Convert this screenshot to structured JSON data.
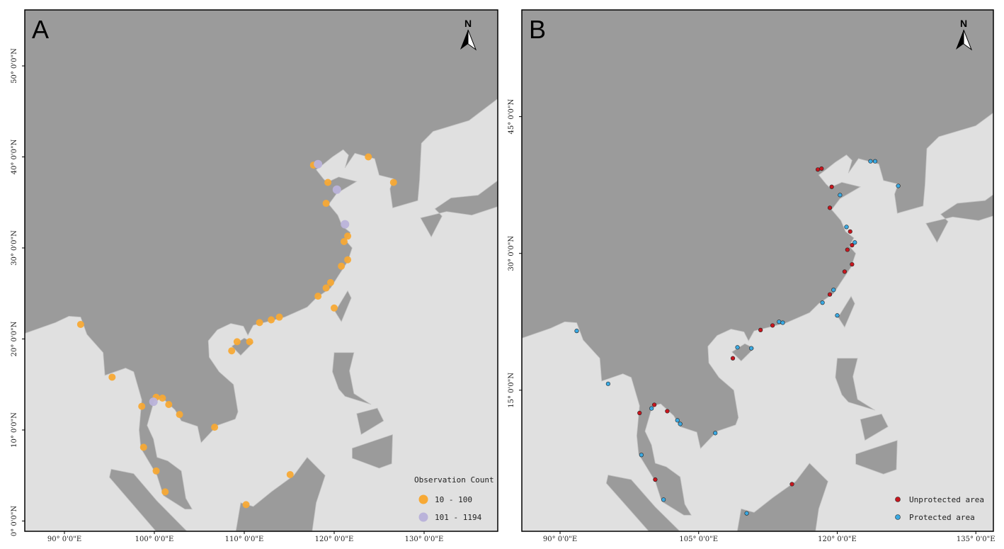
{
  "panels": [
    {
      "label": "A",
      "north": "N",
      "xlim": [
        85.59,
        138.19
      ],
      "ylim": [
        -1.13,
        56.15
      ],
      "xticks": [
        {
          "value": 90,
          "label": "90° 0'0\"E"
        },
        {
          "value": 100,
          "label": "100° 0'0\"E"
        },
        {
          "value": 110,
          "label": "110° 0'0\"E"
        },
        {
          "value": 120,
          "label": "120° 0'0\"E"
        },
        {
          "value": 130,
          "label": "130° 0'0\"E"
        }
      ],
      "yticks": [
        {
          "value": 0,
          "label": "0° 0'0\"N"
        },
        {
          "value": 10,
          "label": "10° 0'0\"N"
        },
        {
          "value": 20,
          "label": "20° 0'0\"N"
        },
        {
          "value": 30,
          "label": "30° 0'0\"N"
        },
        {
          "value": 40,
          "label": "40° 0'0\"N"
        },
        {
          "value": 50,
          "label": "50° 0'0\"N"
        }
      ],
      "legend": {
        "title": "Observation Count",
        "items": [
          {
            "label": "10 - 100",
            "color": "#f7a935",
            "points": [
              [
                117.7,
                39.1
              ],
              [
                119.3,
                37.2
              ],
              [
                119.1,
                34.9
              ],
              [
                123.8,
                40.0
              ],
              [
                126.6,
                37.2
              ],
              [
                121.5,
                31.3
              ],
              [
                121.1,
                30.7
              ],
              [
                121.5,
                28.7
              ],
              [
                120.8,
                28.0
              ],
              [
                119.6,
                26.2
              ],
              [
                119.1,
                25.6
              ],
              [
                118.2,
                24.7
              ],
              [
                120.0,
                23.4
              ],
              [
                113.9,
                22.4
              ],
              [
                113.0,
                22.1
              ],
              [
                111.7,
                21.8
              ],
              [
                110.6,
                19.7
              ],
              [
                109.2,
                19.7
              ],
              [
                108.6,
                18.7
              ],
              [
                91.8,
                21.6
              ],
              [
                95.3,
                15.8
              ],
              [
                100.2,
                13.6
              ],
              [
                100.9,
                13.5
              ],
              [
                101.6,
                12.8
              ],
              [
                102.8,
                11.7
              ],
              [
                98.6,
                12.6
              ],
              [
                106.7,
                10.3
              ],
              [
                98.8,
                8.1
              ],
              [
                100.2,
                5.5
              ],
              [
                101.2,
                3.2
              ],
              [
                115.1,
                5.1
              ],
              [
                110.2,
                1.8
              ]
            ]
          },
          {
            "label": "101 - 1194",
            "color": "#bab3da",
            "points": [
              [
                118.2,
                39.2
              ],
              [
                120.3,
                36.4
              ],
              [
                121.2,
                32.6
              ],
              [
                99.9,
                13.1
              ]
            ]
          }
        ]
      }
    },
    {
      "label": "B",
      "north": "N",
      "xlim": [
        85.86,
        136.9
      ],
      "ylim": [
        -0.47,
        56.7
      ],
      "xticks": [
        {
          "value": 90,
          "label": "90° 0'0\"E"
        },
        {
          "value": 105,
          "label": "105° 0'0\"E"
        },
        {
          "value": 120,
          "label": "120° 0'0\"E"
        },
        {
          "value": 135,
          "label": "135° 0'0\"E"
        }
      ],
      "yticks": [
        {
          "value": 15,
          "label": "15° 0'0\"N"
        },
        {
          "value": 30,
          "label": "30° 0'0\"N"
        },
        {
          "value": 45,
          "label": "45° 0'0\"N"
        }
      ],
      "legend": {
        "items": [
          {
            "label": "Unprotected area",
            "color": "#c8161e",
            "points": [
              [
                117.9,
                39.2
              ],
              [
                118.3,
                39.3
              ],
              [
                119.4,
                37.3
              ],
              [
                119.2,
                35.0
              ],
              [
                121.4,
                32.4
              ],
              [
                121.1,
                30.4
              ],
              [
                121.6,
                30.9
              ],
              [
                120.8,
                28.0
              ],
              [
                121.6,
                28.8
              ],
              [
                119.2,
                25.5
              ],
              [
                113.0,
                22.1
              ],
              [
                111.7,
                21.6
              ],
              [
                108.7,
                18.5
              ],
              [
                98.6,
                12.5
              ],
              [
                100.2,
                13.4
              ],
              [
                101.6,
                12.7
              ],
              [
                100.3,
                5.2
              ],
              [
                115.1,
                4.7
              ]
            ]
          },
          {
            "label": "Protected area",
            "color": "#3aa9e2",
            "points": [
              [
                123.6,
                40.1
              ],
              [
                124.1,
                40.1
              ],
              [
                126.6,
                37.4
              ],
              [
                120.3,
                36.4
              ],
              [
                121.0,
                32.9
              ],
              [
                121.9,
                31.2
              ],
              [
                119.6,
                26.0
              ],
              [
                118.4,
                24.6
              ],
              [
                120.0,
                23.2
              ],
              [
                113.7,
                22.5
              ],
              [
                114.1,
                22.4
              ],
              [
                109.2,
                19.7
              ],
              [
                110.7,
                19.6
              ],
              [
                91.8,
                21.5
              ],
              [
                95.2,
                15.7
              ],
              [
                99.9,
                13.0
              ],
              [
                102.7,
                11.7
              ],
              [
                103.0,
                11.3
              ],
              [
                106.8,
                10.3
              ],
              [
                98.8,
                7.9
              ],
              [
                101.2,
                3.0
              ],
              [
                110.2,
                1.5
              ]
            ]
          }
        ]
      }
    }
  ]
}
